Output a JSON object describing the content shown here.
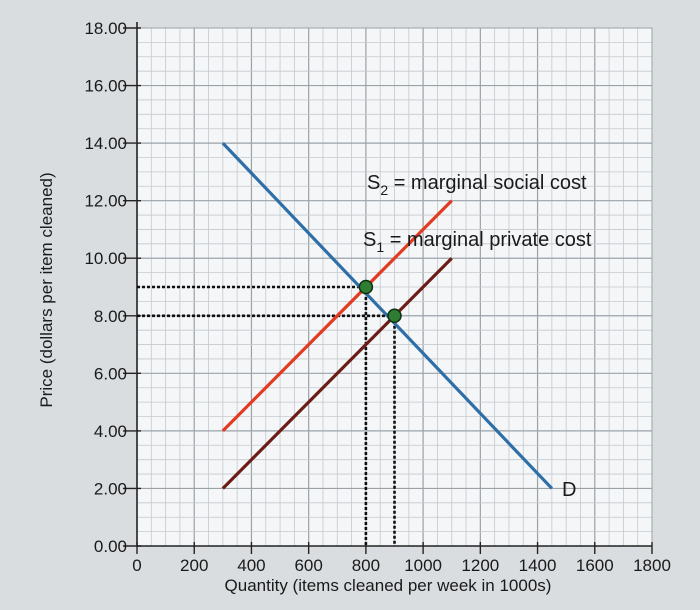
{
  "chart_data": {
    "type": "line",
    "title": "",
    "xlabel": "Quantity (items cleaned per week in 1000s)",
    "ylabel": "Price (dollars per item cleaned)",
    "xlim": [
      0,
      1800
    ],
    "ylim": [
      0,
      18
    ],
    "grid": true,
    "x_ticks": [
      0,
      200,
      400,
      600,
      800,
      1000,
      1200,
      1400,
      1600,
      1800
    ],
    "x_tick_labels": [
      "0",
      "200",
      "400",
      "600",
      "800",
      "1000",
      "1200",
      "1400",
      "1600",
      "1800"
    ],
    "y_ticks": [
      0,
      2,
      4,
      6,
      8,
      10,
      12,
      14,
      16,
      18
    ],
    "y_tick_labels": [
      "0.00",
      "2.00",
      "4.00",
      "6.00",
      "8.00",
      "10.00",
      "12.00",
      "14.00",
      "16.00",
      "18.00"
    ],
    "series": [
      {
        "name": "D",
        "color": "#2f6fa8",
        "points": [
          [
            300,
            14
          ],
          [
            1450,
            2
          ]
        ]
      },
      {
        "name": "S2 = marginal social cost",
        "color": "#e23b22",
        "points": [
          [
            300,
            4
          ],
          [
            1100,
            12
          ]
        ]
      },
      {
        "name": "S1 = marginal private cost",
        "color": "#6b1c17",
        "points": [
          [
            300,
            2
          ],
          [
            1100,
            10
          ]
        ]
      }
    ],
    "labels": {
      "d": "D",
      "s2_main": "S",
      "s2_sub": "2",
      "s2_rest": " = marginal social cost",
      "s1_main": "S",
      "s1_sub": "1",
      "s1_rest": " = marginal private cost"
    },
    "equilibria": [
      {
        "x": 800,
        "y": 9,
        "color": "#2e7d32"
      },
      {
        "x": 900,
        "y": 8,
        "color": "#2e7d32"
      }
    ]
  }
}
